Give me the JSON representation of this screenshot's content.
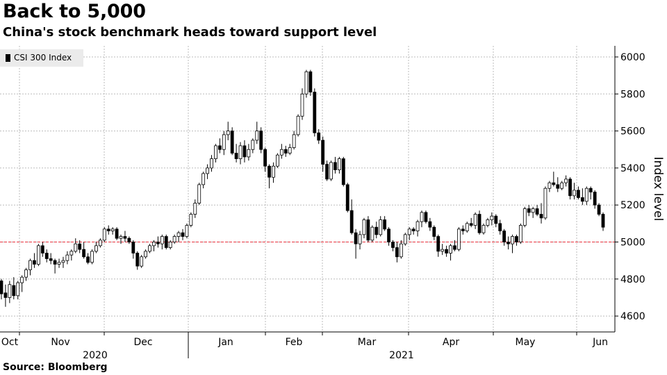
{
  "header": {
    "title": "Back to 5,000",
    "subtitle": "China's stock benchmark heads toward support level"
  },
  "footer": {
    "source": "Source: Bloomberg"
  },
  "colors": {
    "up_fill": "#ffffff",
    "down_fill": "#000000",
    "grid": "#bbbbbb",
    "reference_line": "#e8313b",
    "legend_bg": "#ebebeb"
  },
  "chart_data": {
    "type": "candlestick",
    "title": "Back to 5,000",
    "subtitle": "China's stock benchmark heads toward support level",
    "series_name": "CSI 300 Index",
    "ylabel": "Index level",
    "ylim": [
      4520,
      6070
    ],
    "yticks": [
      4600,
      4800,
      5000,
      5200,
      5400,
      5600,
      5800,
      6000
    ],
    "x_month_ticks": [
      "Oct",
      "Nov",
      "Dec",
      "Jan",
      "Feb",
      "Mar",
      "Apr",
      "May",
      "Jun"
    ],
    "x_year_labels": [
      "2020",
      "2021"
    ],
    "reference_line": {
      "value": 5000,
      "style": "dashed",
      "color": "#e8313b"
    },
    "grid": true,
    "legend_position": "top-left",
    "ohlc": [
      [
        4790,
        4800,
        4690,
        4720
      ],
      [
        4725,
        4770,
        4650,
        4700
      ],
      [
        4700,
        4790,
        4670,
        4770
      ],
      [
        4765,
        4810,
        4690,
        4710
      ],
      [
        4710,
        4790,
        4690,
        4780
      ],
      [
        4780,
        4820,
        4730,
        4810
      ],
      [
        4810,
        4860,
        4790,
        4850
      ],
      [
        4850,
        4910,
        4820,
        4900
      ],
      [
        4900,
        4940,
        4860,
        4880
      ],
      [
        4880,
        4990,
        4870,
        4980
      ],
      [
        4980,
        5000,
        4920,
        4940
      ],
      [
        4940,
        4960,
        4890,
        4910
      ],
      [
        4910,
        4940,
        4880,
        4900
      ],
      [
        4900,
        4910,
        4830,
        4880
      ],
      [
        4880,
        4910,
        4860,
        4890
      ],
      [
        4890,
        4920,
        4860,
        4900
      ],
      [
        4900,
        4950,
        4880,
        4930
      ],
      [
        4930,
        4960,
        4900,
        4950
      ],
      [
        4950,
        5020,
        4940,
        4990
      ],
      [
        4990,
        5010,
        4940,
        4960
      ],
      [
        4960,
        5000,
        4910,
        4920
      ],
      [
        4920,
        4940,
        4880,
        4890
      ],
      [
        4890,
        4960,
        4880,
        4950
      ],
      [
        4950,
        5000,
        4940,
        4980
      ],
      [
        4980,
        5020,
        4970,
        5010
      ],
      [
        5010,
        5080,
        5000,
        5070
      ],
      [
        5070,
        5090,
        5040,
        5060
      ],
      [
        5060,
        5080,
        5040,
        5070
      ],
      [
        5070,
        5080,
        5010,
        5020
      ],
      [
        5020,
        5040,
        4990,
        5030
      ],
      [
        5030,
        5060,
        5000,
        5020
      ],
      [
        5020,
        5030,
        4990,
        5000
      ],
      [
        5000,
        5010,
        4910,
        4940
      ],
      [
        4940,
        4950,
        4850,
        4870
      ],
      [
        4870,
        4930,
        4860,
        4920
      ],
      [
        4920,
        4960,
        4910,
        4950
      ],
      [
        4950,
        4990,
        4940,
        4980
      ],
      [
        4980,
        5010,
        4950,
        5000
      ],
      [
        5000,
        5030,
        4970,
        4990
      ],
      [
        4990,
        5040,
        4960,
        5030
      ],
      [
        5030,
        5040,
        4960,
        4970
      ],
      [
        4970,
        5010,
        4960,
        5000
      ],
      [
        5000,
        5040,
        4990,
        5030
      ],
      [
        5030,
        5060,
        5000,
        5050
      ],
      [
        5050,
        5070,
        5010,
        5030
      ],
      [
        5030,
        5100,
        5020,
        5090
      ],
      [
        5090,
        5160,
        5080,
        5150
      ],
      [
        5150,
        5230,
        5130,
        5210
      ],
      [
        5210,
        5320,
        5200,
        5310
      ],
      [
        5310,
        5380,
        5290,
        5370
      ],
      [
        5370,
        5420,
        5340,
        5400
      ],
      [
        5400,
        5470,
        5380,
        5450
      ],
      [
        5450,
        5530,
        5430,
        5520
      ],
      [
        5520,
        5560,
        5480,
        5500
      ],
      [
        5500,
        5600,
        5470,
        5580
      ],
      [
        5580,
        5650,
        5550,
        5600
      ],
      [
        5600,
        5620,
        5470,
        5480
      ],
      [
        5480,
        5530,
        5430,
        5450
      ],
      [
        5450,
        5540,
        5420,
        5520
      ],
      [
        5520,
        5550,
        5430,
        5460
      ],
      [
        5460,
        5530,
        5440,
        5500
      ],
      [
        5500,
        5560,
        5480,
        5550
      ],
      [
        5550,
        5650,
        5530,
        5600
      ],
      [
        5600,
        5620,
        5480,
        5500
      ],
      [
        5500,
        5510,
        5380,
        5410
      ],
      [
        5410,
        5420,
        5290,
        5350
      ],
      [
        5350,
        5430,
        5320,
        5410
      ],
      [
        5410,
        5480,
        5400,
        5470
      ],
      [
        5470,
        5530,
        5450,
        5500
      ],
      [
        5500,
        5520,
        5460,
        5480
      ],
      [
        5480,
        5530,
        5470,
        5510
      ],
      [
        5510,
        5600,
        5500,
        5580
      ],
      [
        5580,
        5690,
        5570,
        5680
      ],
      [
        5680,
        5830,
        5660,
        5800
      ],
      [
        5800,
        5930,
        5780,
        5920
      ],
      [
        5920,
        5930,
        5790,
        5810
      ],
      [
        5810,
        5830,
        5570,
        5590
      ],
      [
        5590,
        5610,
        5530,
        5550
      ],
      [
        5550,
        5570,
        5380,
        5420
      ],
      [
        5420,
        5440,
        5330,
        5340
      ],
      [
        5340,
        5440,
        5330,
        5430
      ],
      [
        5430,
        5460,
        5370,
        5390
      ],
      [
        5390,
        5460,
        5370,
        5450
      ],
      [
        5450,
        5460,
        5300,
        5310
      ],
      [
        5310,
        5320,
        5160,
        5170
      ],
      [
        5170,
        5230,
        5040,
        5050
      ],
      [
        5050,
        5070,
        4910,
        4990
      ],
      [
        4990,
        5060,
        4960,
        5040
      ],
      [
        5040,
        5130,
        5020,
        5120
      ],
      [
        5120,
        5140,
        5000,
        5010
      ],
      [
        5010,
        5090,
        5000,
        5080
      ],
      [
        5080,
        5110,
        5020,
        5040
      ],
      [
        5040,
        5140,
        5030,
        5120
      ],
      [
        5120,
        5140,
        5060,
        5070
      ],
      [
        5070,
        5080,
        4980,
        5000
      ],
      [
        5000,
        5010,
        4950,
        4970
      ],
      [
        4970,
        5000,
        4890,
        4920
      ],
      [
        4920,
        5010,
        4910,
        4990
      ],
      [
        4990,
        5050,
        4980,
        5040
      ],
      [
        5040,
        5080,
        5010,
        5070
      ],
      [
        5070,
        5080,
        5040,
        5060
      ],
      [
        5060,
        5120,
        5030,
        5110
      ],
      [
        5110,
        5170,
        5080,
        5160
      ],
      [
        5160,
        5170,
        5100,
        5110
      ],
      [
        5110,
        5130,
        5060,
        5080
      ],
      [
        5080,
        5090,
        5010,
        5030
      ],
      [
        5030,
        5040,
        4920,
        4950
      ],
      [
        4950,
        4990,
        4930,
        4960
      ],
      [
        4960,
        4980,
        4920,
        4940
      ],
      [
        4940,
        4990,
        4900,
        4980
      ],
      [
        4980,
        5010,
        4950,
        4960
      ],
      [
        4960,
        5080,
        4950,
        5070
      ],
      [
        5070,
        5090,
        5040,
        5060
      ],
      [
        5060,
        5110,
        5050,
        5100
      ],
      [
        5100,
        5130,
        5080,
        5090
      ],
      [
        5090,
        5160,
        5070,
        5150
      ],
      [
        5150,
        5170,
        5040,
        5050
      ],
      [
        5050,
        5100,
        5040,
        5090
      ],
      [
        5090,
        5130,
        5080,
        5120
      ],
      [
        5120,
        5160,
        5090,
        5140
      ],
      [
        5140,
        5150,
        5080,
        5100
      ],
      [
        5100,
        5120,
        5040,
        5060
      ],
      [
        5060,
        5070,
        4980,
        5000
      ],
      [
        5000,
        5030,
        4960,
        4990
      ],
      [
        4990,
        5040,
        4940,
        5030
      ],
      [
        5030,
        5040,
        4980,
        5000
      ],
      [
        5000,
        5100,
        4990,
        5090
      ],
      [
        5090,
        5190,
        5080,
        5180
      ],
      [
        5180,
        5200,
        5140,
        5160
      ],
      [
        5160,
        5190,
        5130,
        5180
      ],
      [
        5180,
        5200,
        5140,
        5150
      ],
      [
        5150,
        5210,
        5100,
        5130
      ],
      [
        5130,
        5300,
        5120,
        5290
      ],
      [
        5290,
        5330,
        5270,
        5320
      ],
      [
        5320,
        5380,
        5300,
        5310
      ],
      [
        5310,
        5350,
        5270,
        5290
      ],
      [
        5290,
        5330,
        5280,
        5320
      ],
      [
        5320,
        5360,
        5300,
        5340
      ],
      [
        5340,
        5350,
        5230,
        5250
      ],
      [
        5250,
        5320,
        5230,
        5280
      ],
      [
        5280,
        5300,
        5230,
        5240
      ],
      [
        5240,
        5290,
        5200,
        5220
      ],
      [
        5220,
        5300,
        5200,
        5290
      ],
      [
        5290,
        5300,
        5230,
        5270
      ],
      [
        5270,
        5280,
        5180,
        5200
      ],
      [
        5200,
        5210,
        5140,
        5150
      ],
      [
        5150,
        5160,
        5060,
        5080
      ]
    ]
  }
}
